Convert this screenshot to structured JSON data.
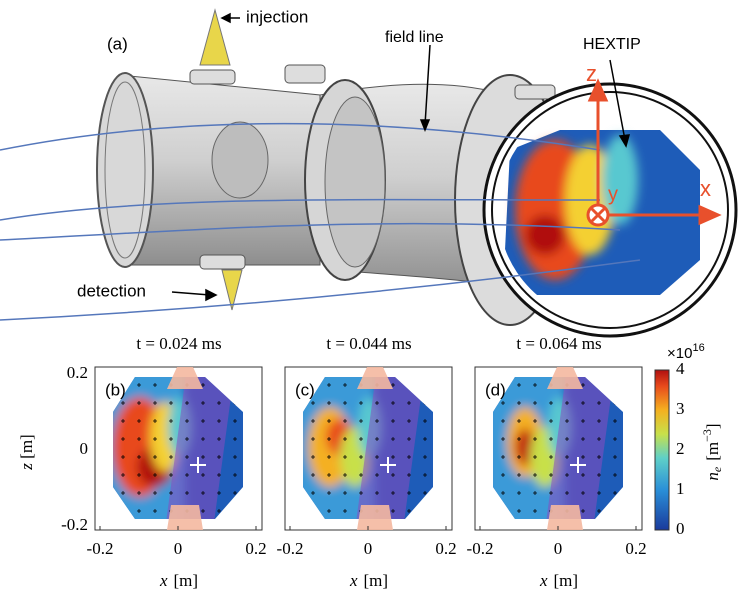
{
  "figure": {
    "panel_a": {
      "label": "(a)",
      "annotations": {
        "injection": "injection",
        "field_line": "field line",
        "hextip": "HEXTIP",
        "detection": "detection"
      },
      "axes": {
        "z": "z",
        "y": "y",
        "x": "x"
      }
    },
    "panels": [
      {
        "label": "(b)",
        "title": "t = 0.024 ms"
      },
      {
        "label": "(c)",
        "title": "t = 0.044 ms"
      },
      {
        "label": "(d)",
        "title": "t = 0.064 ms"
      }
    ],
    "y_axis": {
      "symbol": "z",
      "unit": "[m]",
      "ticks": [
        "0.2",
        "0",
        "-0.2"
      ]
    },
    "x_axis": {
      "symbol": "x",
      "unit": "[m]",
      "ticks": [
        "-0.2",
        "0",
        "0.2"
      ]
    },
    "colorbar": {
      "multiplier": {
        "base": "×10",
        "exponent": "16"
      },
      "label": {
        "symbol": "n",
        "subscript": "e",
        "unit_open": "[m",
        "exponent": "−3",
        "unit_close": "]"
      },
      "ticks": [
        "0",
        "1",
        "2",
        "3",
        "4"
      ]
    }
  }
}
